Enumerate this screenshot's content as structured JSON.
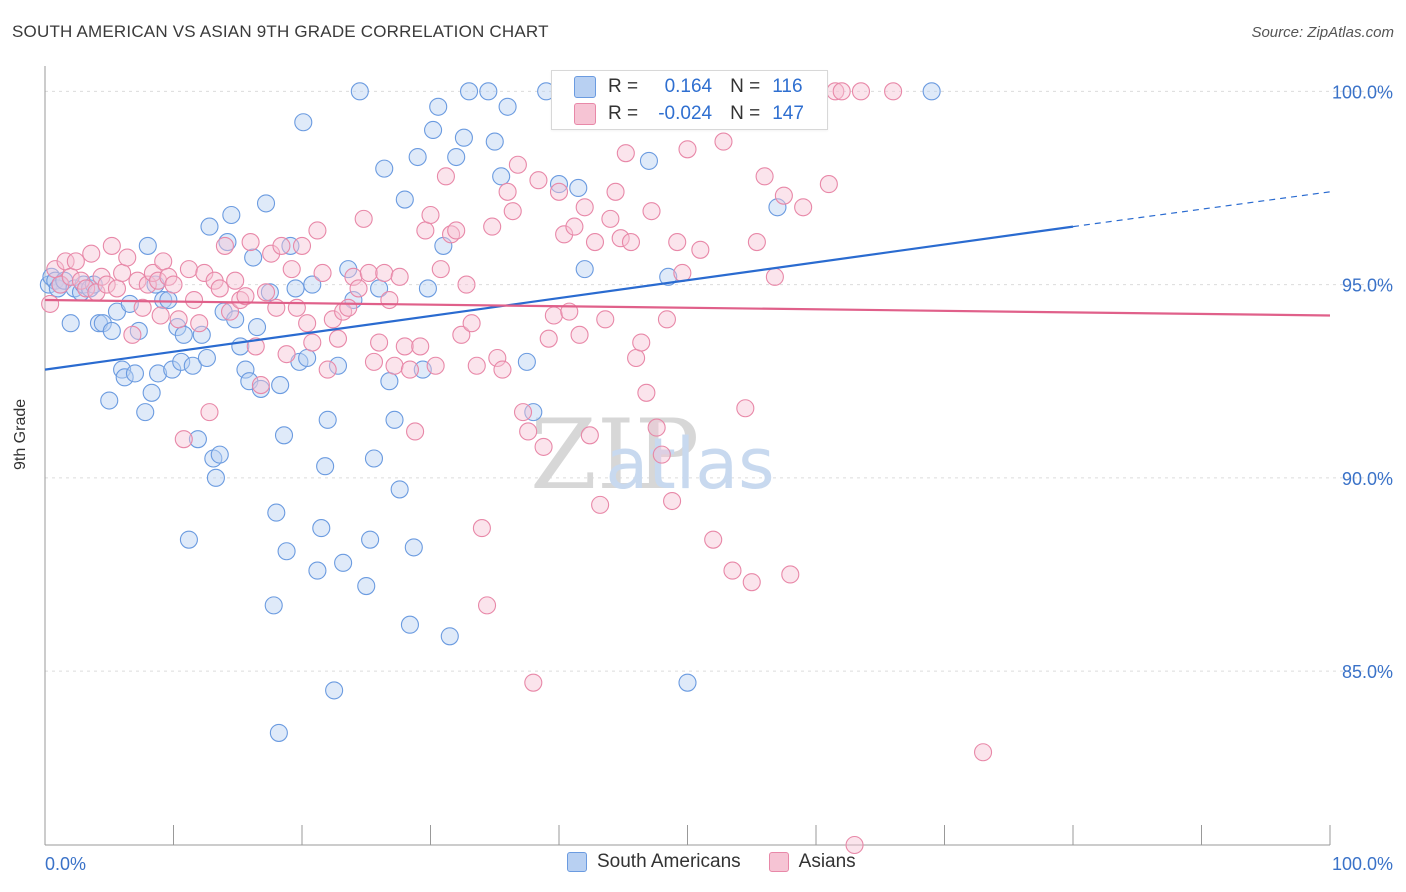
{
  "title": "SOUTH AMERICAN VS ASIAN 9TH GRADE CORRELATION CHART",
  "source": "Source: ZipAtlas.com",
  "watermark": {
    "zip": "ZIP",
    "atlas": "atlas"
  },
  "legend_box": {
    "rows": [
      {
        "r_label": "R =",
        "r_value": "0.164",
        "n_label": "N =",
        "n_value": "116"
      },
      {
        "r_label": "R =",
        "r_value": "-0.024",
        "n_label": "N =",
        "n_value": "147"
      }
    ]
  },
  "legend_bottom": {
    "items": [
      "South Americans",
      "Asians"
    ]
  },
  "chart_data": {
    "type": "scatter",
    "title": "SOUTH AMERICAN VS ASIAN 9TH GRADE CORRELATION CHART",
    "xlabel": "",
    "ylabel": "9th Grade",
    "xlim": [
      0,
      100
    ],
    "ylim": [
      80.5,
      100.5
    ],
    "x_tick_labels": [
      {
        "value": 0,
        "label": "0.0%"
      },
      {
        "value": 100,
        "label": "100.0%"
      }
    ],
    "y_tick_labels": [
      {
        "value": 100,
        "label": "100.0%"
      },
      {
        "value": 95,
        "label": "95.0%"
      },
      {
        "value": 90,
        "label": "90.0%"
      },
      {
        "value": 85,
        "label": "85.0%"
      }
    ],
    "grid": true,
    "legend_position": "top-center",
    "series": [
      {
        "name": "South Americans",
        "color": "#6b9be0",
        "fill": "#b8d0f2",
        "trend": {
          "x": [
            0,
            80
          ],
          "y": [
            92.8,
            96.5
          ],
          "dashed_x": [
            80,
            100
          ],
          "dashed_y": [
            96.5,
            97.4
          ]
        },
        "points": [
          [
            0.3,
            95.0
          ],
          [
            0.5,
            95.2
          ],
          [
            0.8,
            95.1
          ],
          [
            1.0,
            94.9
          ],
          [
            1.2,
            95.0
          ],
          [
            1.5,
            95.1
          ],
          [
            2.0,
            94.0
          ],
          [
            2.3,
            94.9
          ],
          [
            2.8,
            94.8
          ],
          [
            3.0,
            95.0
          ],
          [
            3.5,
            94.9
          ],
          [
            3.8,
            95.0
          ],
          [
            4.2,
            94.0
          ],
          [
            4.5,
            94.0
          ],
          [
            5.0,
            92.0
          ],
          [
            5.2,
            93.8
          ],
          [
            5.6,
            94.3
          ],
          [
            6.0,
            92.8
          ],
          [
            6.2,
            92.6
          ],
          [
            6.6,
            94.5
          ],
          [
            7.0,
            92.7
          ],
          [
            7.3,
            93.8
          ],
          [
            7.8,
            91.7
          ],
          [
            8.0,
            96.0
          ],
          [
            8.3,
            92.2
          ],
          [
            8.6,
            95.0
          ],
          [
            8.8,
            92.7
          ],
          [
            9.2,
            94.6
          ],
          [
            9.6,
            94.6
          ],
          [
            9.9,
            92.8
          ],
          [
            10.3,
            93.9
          ],
          [
            10.6,
            93.0
          ],
          [
            10.8,
            93.7
          ],
          [
            11.2,
            88.4
          ],
          [
            11.5,
            92.9
          ],
          [
            11.9,
            91.0
          ],
          [
            12.2,
            93.7
          ],
          [
            12.6,
            93.1
          ],
          [
            12.8,
            96.5
          ],
          [
            13.1,
            90.5
          ],
          [
            13.3,
            90.0
          ],
          [
            13.6,
            90.6
          ],
          [
            13.9,
            94.3
          ],
          [
            14.2,
            96.1
          ],
          [
            14.5,
            96.8
          ],
          [
            14.8,
            94.1
          ],
          [
            15.2,
            93.4
          ],
          [
            15.6,
            92.8
          ],
          [
            15.9,
            92.5
          ],
          [
            16.2,
            95.7
          ],
          [
            16.5,
            93.9
          ],
          [
            16.8,
            92.3
          ],
          [
            17.2,
            97.1
          ],
          [
            17.5,
            94.8
          ],
          [
            17.8,
            86.7
          ],
          [
            18.0,
            89.1
          ],
          [
            18.3,
            92.4
          ],
          [
            18.6,
            91.1
          ],
          [
            18.8,
            88.1
          ],
          [
            19.1,
            96.0
          ],
          [
            19.5,
            94.9
          ],
          [
            19.8,
            93.0
          ],
          [
            20.1,
            99.2
          ],
          [
            20.4,
            93.1
          ],
          [
            20.8,
            95.0
          ],
          [
            21.2,
            87.6
          ],
          [
            21.5,
            88.7
          ],
          [
            21.8,
            90.3
          ],
          [
            22.0,
            91.5
          ],
          [
            22.5,
            84.5
          ],
          [
            22.8,
            92.9
          ],
          [
            23.2,
            87.8
          ],
          [
            23.6,
            95.4
          ],
          [
            24.0,
            94.6
          ],
          [
            24.5,
            100.0
          ],
          [
            25.0,
            87.2
          ],
          [
            25.3,
            88.4
          ],
          [
            25.6,
            90.5
          ],
          [
            26.0,
            94.9
          ],
          [
            26.4,
            98.0
          ],
          [
            26.8,
            92.5
          ],
          [
            27.2,
            91.5
          ],
          [
            27.6,
            89.7
          ],
          [
            28.0,
            97.2
          ],
          [
            28.4,
            86.2
          ],
          [
            28.7,
            88.2
          ],
          [
            29.0,
            98.3
          ],
          [
            29.4,
            92.8
          ],
          [
            29.8,
            94.9
          ],
          [
            30.2,
            99.0
          ],
          [
            30.6,
            99.6
          ],
          [
            31.0,
            96.0
          ],
          [
            31.5,
            85.9
          ],
          [
            32.0,
            98.3
          ],
          [
            32.6,
            98.8
          ],
          [
            33.0,
            100.0
          ],
          [
            34.5,
            100.0
          ],
          [
            35.0,
            98.7
          ],
          [
            35.5,
            97.8
          ],
          [
            36.0,
            99.6
          ],
          [
            37.5,
            93.0
          ],
          [
            38.0,
            91.7
          ],
          [
            39.0,
            100.0
          ],
          [
            40.0,
            97.6
          ],
          [
            41.5,
            97.5
          ],
          [
            42.0,
            95.4
          ],
          [
            43.0,
            100.0
          ],
          [
            45.0,
            100.0
          ],
          [
            46.0,
            100.0
          ],
          [
            47.0,
            98.2
          ],
          [
            48.5,
            95.2
          ],
          [
            50.0,
            84.7
          ],
          [
            55.0,
            100.0
          ],
          [
            57.0,
            97.0
          ],
          [
            69.0,
            100.0
          ],
          [
            18.2,
            83.4
          ]
        ]
      },
      {
        "name": "Asians",
        "color": "#e888a8",
        "fill": "#f6c4d4",
        "trend": {
          "x": [
            0,
            100
          ],
          "y": [
            94.6,
            94.2
          ]
        },
        "points": [
          [
            0.4,
            94.5
          ],
          [
            0.8,
            95.4
          ],
          [
            1.2,
            95.0
          ],
          [
            1.6,
            95.6
          ],
          [
            2.0,
            95.2
          ],
          [
            2.4,
            95.6
          ],
          [
            2.8,
            95.1
          ],
          [
            3.2,
            94.9
          ],
          [
            3.6,
            95.8
          ],
          [
            4.0,
            94.8
          ],
          [
            4.4,
            95.2
          ],
          [
            4.8,
            95.0
          ],
          [
            5.2,
            96.0
          ],
          [
            5.6,
            94.9
          ],
          [
            6.0,
            95.3
          ],
          [
            6.4,
            95.7
          ],
          [
            6.8,
            93.7
          ],
          [
            7.2,
            95.1
          ],
          [
            7.6,
            94.4
          ],
          [
            8.0,
            95.0
          ],
          [
            8.4,
            95.3
          ],
          [
            8.8,
            95.1
          ],
          [
            9.2,
            95.6
          ],
          [
            9.6,
            95.2
          ],
          [
            10.0,
            95.0
          ],
          [
            10.4,
            94.1
          ],
          [
            10.8,
            91.0
          ],
          [
            11.2,
            95.4
          ],
          [
            11.6,
            94.6
          ],
          [
            12.0,
            94.0
          ],
          [
            12.4,
            95.3
          ],
          [
            12.8,
            91.7
          ],
          [
            13.2,
            95.1
          ],
          [
            13.6,
            94.9
          ],
          [
            14.0,
            96.0
          ],
          [
            14.4,
            94.3
          ],
          [
            14.8,
            95.1
          ],
          [
            15.2,
            94.6
          ],
          [
            15.6,
            94.7
          ],
          [
            16.0,
            96.1
          ],
          [
            16.4,
            93.4
          ],
          [
            16.8,
            92.4
          ],
          [
            17.2,
            94.8
          ],
          [
            17.6,
            95.8
          ],
          [
            18.0,
            94.4
          ],
          [
            18.4,
            96.0
          ],
          [
            18.8,
            93.2
          ],
          [
            19.2,
            95.4
          ],
          [
            19.6,
            94.4
          ],
          [
            20.0,
            96.0
          ],
          [
            20.4,
            94.0
          ],
          [
            20.8,
            93.5
          ],
          [
            21.2,
            96.4
          ],
          [
            21.6,
            95.3
          ],
          [
            22.0,
            92.8
          ],
          [
            22.4,
            94.1
          ],
          [
            22.8,
            93.6
          ],
          [
            23.2,
            94.3
          ],
          [
            23.6,
            94.4
          ],
          [
            24.0,
            95.2
          ],
          [
            24.4,
            94.9
          ],
          [
            24.8,
            96.7
          ],
          [
            25.2,
            95.3
          ],
          [
            25.6,
            93.0
          ],
          [
            26.0,
            93.5
          ],
          [
            26.4,
            95.3
          ],
          [
            26.8,
            94.6
          ],
          [
            27.2,
            92.9
          ],
          [
            27.6,
            95.2
          ],
          [
            28.0,
            93.4
          ],
          [
            28.4,
            92.8
          ],
          [
            28.8,
            91.2
          ],
          [
            29.2,
            93.4
          ],
          [
            29.6,
            96.4
          ],
          [
            30.0,
            96.8
          ],
          [
            30.4,
            92.9
          ],
          [
            30.8,
            95.4
          ],
          [
            31.2,
            97.8
          ],
          [
            31.6,
            96.3
          ],
          [
            32.0,
            96.4
          ],
          [
            32.4,
            93.7
          ],
          [
            32.8,
            95.0
          ],
          [
            33.2,
            94.0
          ],
          [
            33.6,
            92.9
          ],
          [
            34.0,
            88.7
          ],
          [
            34.4,
            86.7
          ],
          [
            34.8,
            96.5
          ],
          [
            35.2,
            93.1
          ],
          [
            35.6,
            92.8
          ],
          [
            36.0,
            97.4
          ],
          [
            36.4,
            96.9
          ],
          [
            36.8,
            98.1
          ],
          [
            37.2,
            91.7
          ],
          [
            37.6,
            91.2
          ],
          [
            38.0,
            84.7
          ],
          [
            38.4,
            97.7
          ],
          [
            38.8,
            90.8
          ],
          [
            39.2,
            93.6
          ],
          [
            39.6,
            94.2
          ],
          [
            40.0,
            97.4
          ],
          [
            40.4,
            96.3
          ],
          [
            40.8,
            94.3
          ],
          [
            41.2,
            96.5
          ],
          [
            41.6,
            93.7
          ],
          [
            42.0,
            97.0
          ],
          [
            42.4,
            91.1
          ],
          [
            42.8,
            96.1
          ],
          [
            43.2,
            89.3
          ],
          [
            43.6,
            94.1
          ],
          [
            44.0,
            96.7
          ],
          [
            44.4,
            97.4
          ],
          [
            44.8,
            96.2
          ],
          [
            45.2,
            98.4
          ],
          [
            45.6,
            96.1
          ],
          [
            46.0,
            93.1
          ],
          [
            46.4,
            93.5
          ],
          [
            46.8,
            92.2
          ],
          [
            47.2,
            96.9
          ],
          [
            47.6,
            91.3
          ],
          [
            48.0,
            90.6
          ],
          [
            48.4,
            94.1
          ],
          [
            48.8,
            89.4
          ],
          [
            49.2,
            96.1
          ],
          [
            49.6,
            95.3
          ],
          [
            50.0,
            98.5
          ],
          [
            50.4,
            100.0
          ],
          [
            51.0,
            95.9
          ],
          [
            52.0,
            88.4
          ],
          [
            52.8,
            98.7
          ],
          [
            53.5,
            87.6
          ],
          [
            54.5,
            91.8
          ],
          [
            55.0,
            87.3
          ],
          [
            55.4,
            96.1
          ],
          [
            56.0,
            97.8
          ],
          [
            56.8,
            95.2
          ],
          [
            57.5,
            97.3
          ],
          [
            58.0,
            87.5
          ],
          [
            59.0,
            97.0
          ],
          [
            60.0,
            100.0
          ],
          [
            61.0,
            97.6
          ],
          [
            61.5,
            100.0
          ],
          [
            62.0,
            100.0
          ],
          [
            63.5,
            100.0
          ],
          [
            66.0,
            100.0
          ],
          [
            73.0,
            82.9
          ],
          [
            63.0,
            80.5
          ],
          [
            9.0,
            94.2
          ]
        ]
      }
    ]
  }
}
